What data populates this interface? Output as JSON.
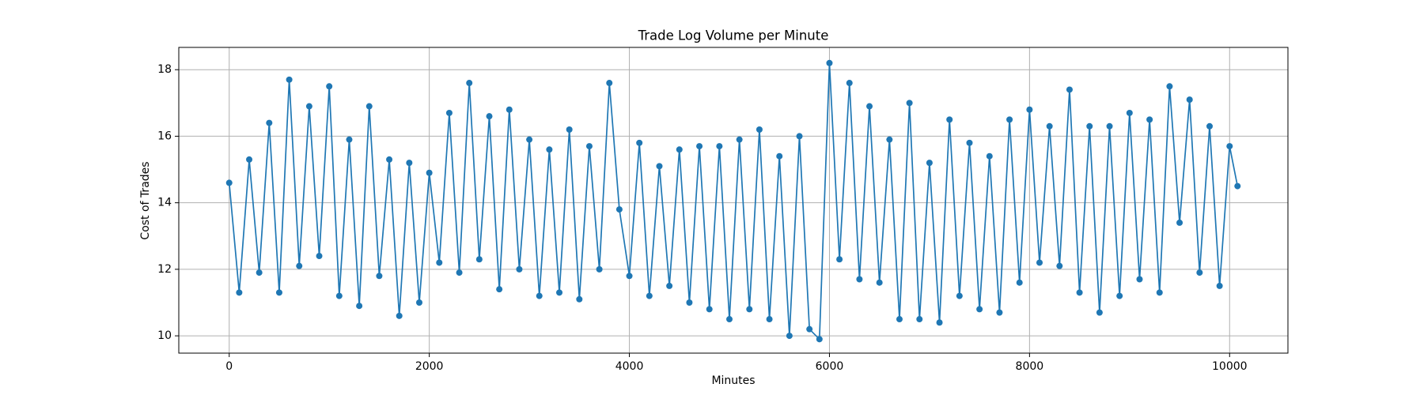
{
  "chart_data": {
    "type": "line",
    "title": "Trade Log Volume per Minute",
    "x_label": "Minutes",
    "y_label": "Cost of Trades",
    "x": [
      0,
      100,
      200,
      300,
      400,
      500,
      600,
      700,
      800,
      900,
      1000,
      1100,
      1200,
      1300,
      1400,
      1500,
      1600,
      1700,
      1800,
      1900,
      2000,
      2100,
      2200,
      2300,
      2400,
      2500,
      2600,
      2700,
      2800,
      2900,
      3000,
      3100,
      3200,
      3300,
      3400,
      3500,
      3600,
      3700,
      3800,
      3900,
      4000,
      4100,
      4200,
      4300,
      4400,
      4500,
      4600,
      4700,
      4800,
      4900,
      5000,
      5100,
      5200,
      5300,
      5400,
      5500,
      5600,
      5700,
      5800,
      5900,
      6000,
      6100,
      6200,
      6300,
      6400,
      6500,
      6600,
      6700,
      6800,
      6900,
      7000,
      7100,
      7200,
      7300,
      7400,
      7500,
      7600,
      7700,
      7800,
      7900,
      8000,
      8100,
      8200,
      8300,
      8400,
      8500,
      8600,
      8700,
      8800,
      8900,
      9000,
      9100,
      9200,
      9300,
      9400,
      9500,
      9600,
      9700,
      9800,
      9900,
      10000,
      10079
    ],
    "series": [
      {
        "name": "Cost of Trades",
        "color": "#1f77b4",
        "values": [
          14.6,
          11.3,
          15.3,
          11.9,
          16.4,
          11.3,
          17.7,
          12.1,
          16.9,
          12.4,
          17.5,
          11.2,
          15.9,
          10.9,
          16.9,
          11.8,
          15.3,
          10.6,
          15.2,
          11.0,
          14.9,
          12.2,
          16.7,
          11.9,
          17.6,
          12.3,
          16.6,
          11.4,
          16.8,
          12.0,
          15.9,
          11.2,
          15.6,
          11.3,
          16.2,
          11.1,
          15.7,
          12.0,
          17.6,
          13.8,
          11.8,
          15.8,
          11.2,
          15.1,
          11.5,
          15.6,
          11.0,
          15.7,
          10.8,
          15.7,
          10.5,
          15.9,
          10.8,
          16.2,
          10.5,
          15.4,
          10.0,
          16.0,
          10.2,
          9.9,
          18.2,
          12.3,
          17.6,
          11.7,
          16.9,
          11.6,
          15.9,
          10.5,
          17.0,
          10.5,
          15.2,
          10.4,
          16.5,
          11.2,
          15.8,
          10.8,
          15.4,
          10.7,
          16.5,
          11.6,
          16.8,
          12.2,
          16.3,
          12.1,
          17.4,
          11.3,
          16.3,
          10.7,
          16.3,
          11.2,
          16.7,
          11.7,
          16.5,
          11.3,
          17.5,
          13.4,
          17.1,
          11.9,
          16.3,
          11.5,
          15.7,
          14.5
        ]
      }
    ],
    "xlim": [
      -504,
      10583
    ],
    "ylim": [
      9.48,
      18.67
    ],
    "xticks": [
      0,
      2000,
      4000,
      6000,
      8000,
      10000
    ],
    "yticks": [
      10,
      12,
      14,
      16,
      18
    ],
    "grid": true
  }
}
